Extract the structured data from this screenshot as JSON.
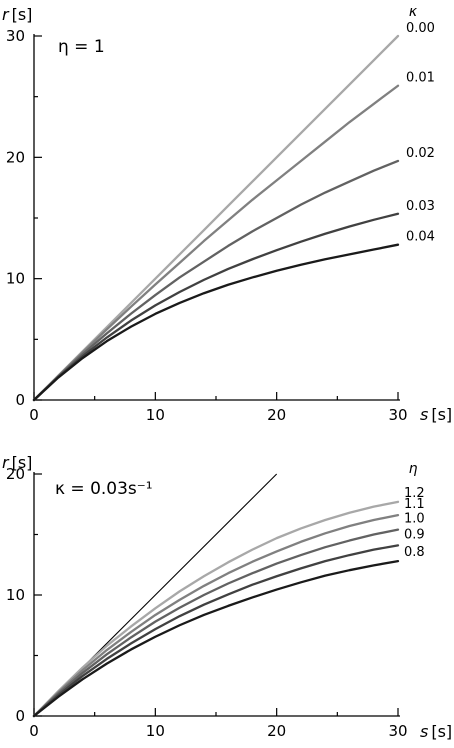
{
  "chart_data": [
    {
      "type": "line",
      "xlabel_var": "s",
      "xlabel_unit": "[s]",
      "ylabel_var": "r",
      "ylabel_unit": "[s]",
      "annotation": "η = 1",
      "legend_title": "κ",
      "legend_placement": "right",
      "grid": false,
      "xlim": [
        0,
        30
      ],
      "ylim": [
        0,
        30
      ],
      "xticks": [
        0,
        10,
        20,
        30
      ],
      "yticks": [
        0,
        10,
        20,
        30
      ],
      "x": [
        0,
        2,
        4,
        6,
        8,
        10,
        12,
        14,
        16,
        18,
        20,
        22,
        24,
        26,
        28,
        30
      ],
      "series": [
        {
          "name": "0.00",
          "color": "#a8a8a8",
          "values": [
            0,
            2,
            4,
            6,
            8,
            10,
            12,
            14,
            16,
            18,
            20,
            22,
            24,
            26,
            28,
            30
          ]
        },
        {
          "name": "0.01",
          "color": "#808080",
          "values": [
            0,
            1.98,
            3.92,
            5.82,
            7.69,
            9.52,
            11.3,
            13.1,
            14.8,
            16.5,
            18.1,
            19.7,
            21.3,
            22.9,
            24.4,
            25.9
          ]
        },
        {
          "name": "0.02",
          "color": "#626262",
          "values": [
            0,
            1.94,
            3.77,
            5.49,
            7.12,
            8.65,
            10.1,
            11.4,
            12.7,
            13.9,
            15.0,
            16.1,
            17.1,
            18.0,
            18.9,
            19.7
          ]
        },
        {
          "name": "0.03",
          "color": "#414141",
          "values": [
            0,
            1.9,
            3.6,
            5.15,
            6.55,
            7.8,
            8.9,
            9.9,
            10.8,
            11.6,
            12.35,
            13.05,
            13.7,
            14.3,
            14.85,
            15.35
          ]
        },
        {
          "name": "0.04",
          "color": "#1a1a1a",
          "values": [
            0,
            1.85,
            3.45,
            4.85,
            6.05,
            7.1,
            8.0,
            8.8,
            9.5,
            10.1,
            10.65,
            11.15,
            11.6,
            12.0,
            12.4,
            12.8
          ]
        }
      ]
    },
    {
      "type": "line",
      "xlabel_var": "s",
      "xlabel_unit": "[s]",
      "ylabel_var": "r",
      "ylabel_unit": "[s]",
      "annotation": "κ = 0.03s⁻¹",
      "legend_title": "η",
      "legend_placement": "right",
      "grid": false,
      "xlim": [
        0,
        30
      ],
      "ylim": [
        0,
        20
      ],
      "xticks": [
        0,
        10,
        20,
        30
      ],
      "yticks": [
        0,
        10,
        20
      ],
      "reference_line": {
        "x": [
          0,
          20
        ],
        "y": [
          0,
          20
        ],
        "color": "#000000"
      },
      "x": [
        0,
        2,
        4,
        6,
        8,
        10,
        12,
        14,
        16,
        18,
        20,
        22,
        24,
        26,
        28,
        30
      ],
      "series": [
        {
          "name": "1.2",
          "color": "#a8a8a8",
          "values": [
            0,
            2.05,
            4.0,
            5.8,
            7.4,
            8.9,
            10.3,
            11.55,
            12.7,
            13.75,
            14.7,
            15.5,
            16.2,
            16.8,
            17.3,
            17.7
          ]
        },
        {
          "name": "1.1",
          "color": "#808080",
          "values": [
            0,
            1.95,
            3.78,
            5.45,
            6.95,
            8.35,
            9.6,
            10.75,
            11.8,
            12.75,
            13.6,
            14.4,
            15.1,
            15.7,
            16.2,
            16.6
          ]
        },
        {
          "name": "1.0",
          "color": "#626262",
          "values": [
            0,
            1.85,
            3.55,
            5.1,
            6.5,
            7.8,
            8.95,
            10.0,
            10.95,
            11.8,
            12.6,
            13.3,
            13.95,
            14.5,
            15.0,
            15.4
          ]
        },
        {
          "name": "0.9",
          "color": "#414141",
          "values": [
            0,
            1.72,
            3.3,
            4.72,
            6.0,
            7.18,
            8.25,
            9.2,
            10.05,
            10.85,
            11.55,
            12.2,
            12.8,
            13.3,
            13.75,
            14.1
          ]
        },
        {
          "name": "0.8",
          "color": "#1a1a1a",
          "values": [
            0,
            1.58,
            3.03,
            4.33,
            5.5,
            6.55,
            7.5,
            8.35,
            9.1,
            9.8,
            10.45,
            11.05,
            11.6,
            12.05,
            12.45,
            12.8
          ]
        }
      ]
    }
  ]
}
